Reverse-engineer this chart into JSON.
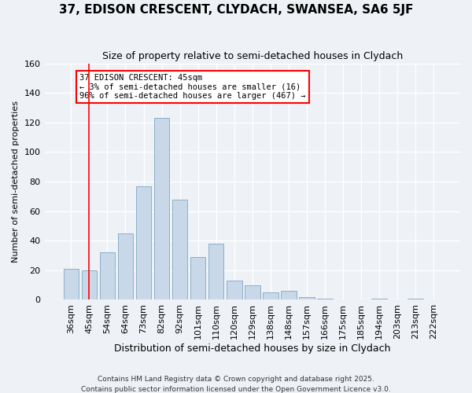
{
  "title1": "37, EDISON CRESCENT, CLYDACH, SWANSEA, SA6 5JF",
  "title2": "Size of property relative to semi-detached houses in Clydach",
  "xlabel": "Distribution of semi-detached houses by size in Clydach",
  "ylabel": "Number of semi-detached properties",
  "categories": [
    "36sqm",
    "45sqm",
    "54sqm",
    "64sqm",
    "73sqm",
    "82sqm",
    "92sqm",
    "101sqm",
    "110sqm",
    "120sqm",
    "129sqm",
    "138sqm",
    "148sqm",
    "157sqm",
    "166sqm",
    "175sqm",
    "185sqm",
    "194sqm",
    "203sqm",
    "213sqm",
    "222sqm"
  ],
  "values": [
    21,
    20,
    32,
    45,
    77,
    123,
    68,
    29,
    38,
    13,
    10,
    5,
    6,
    2,
    1,
    0,
    0,
    1,
    0,
    1,
    0
  ],
  "bar_color": "#c8d8e8",
  "bar_edge_color": "#8aafc8",
  "vline_x": 1,
  "vline_color": "red",
  "annotation_title": "37 EDISON CRESCENT: 45sqm",
  "annotation_line1": "← 3% of semi-detached houses are smaller (16)",
  "annotation_line2": "96% of semi-detached houses are larger (467) →",
  "annotation_box_color": "white",
  "annotation_box_edge": "red",
  "ylim": [
    0,
    160
  ],
  "yticks": [
    0,
    20,
    40,
    60,
    80,
    100,
    120,
    140,
    160
  ],
  "footer1": "Contains HM Land Registry data © Crown copyright and database right 2025.",
  "footer2": "Contains public sector information licensed under the Open Government Licence v3.0.",
  "bg_color": "#eef2f7"
}
